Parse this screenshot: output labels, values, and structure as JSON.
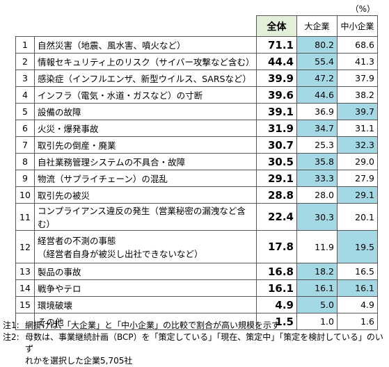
{
  "unit": "（%）",
  "table": {
    "header": [
      "全体",
      "大企業",
      "中小企業"
    ],
    "header_color": "#e2efd9",
    "shade_color": "#a3d8e4",
    "rows": [
      {
        "no": "1",
        "label": [
          "自然災害（地震、風水害、噴火など）"
        ],
        "values": [
          "71.1",
          "80.2",
          "68.6"
        ],
        "shaded": [
          1
        ]
      },
      {
        "no": "2",
        "label": [
          "情報セキュリティ上のリスク（サイバー攻撃など含む）"
        ],
        "values": [
          "44.4",
          "55.4",
          "41.3"
        ],
        "shaded": [
          1
        ]
      },
      {
        "no": "3",
        "label": [
          "感染症（インフルエンザ、新型ウイルス、SARSなど）"
        ],
        "values": [
          "39.9",
          "47.2",
          "37.9"
        ],
        "shaded": [
          1
        ]
      },
      {
        "no": "4",
        "label": [
          "インフラ（電気・水道・ガスなど）の寸断"
        ],
        "values": [
          "39.6",
          "44.6",
          "38.2"
        ],
        "shaded": [
          1
        ]
      },
      {
        "no": "5",
        "label": [
          "設備の故障"
        ],
        "values": [
          "39.1",
          "36.9",
          "39.7"
        ],
        "shaded": [
          2
        ]
      },
      {
        "no": "6",
        "label": [
          "火災・爆発事故"
        ],
        "values": [
          "31.9",
          "34.7",
          "31.1"
        ],
        "shaded": [
          1
        ]
      },
      {
        "no": "7",
        "label": [
          "取引先の倒産・廃業"
        ],
        "values": [
          "30.7",
          "25.3",
          "32.3"
        ],
        "shaded": [
          2
        ]
      },
      {
        "no": "8",
        "label": [
          "自社業務管理システムの不具合・故障"
        ],
        "values": [
          "30.5",
          "35.8",
          "29.0"
        ],
        "shaded": [
          1
        ]
      },
      {
        "no": "9",
        "label": [
          "物流（サプライチェーン）の混乱"
        ],
        "values": [
          "29.1",
          "33.3",
          "27.9"
        ],
        "shaded": [
          1
        ]
      },
      {
        "no": "10",
        "label": [
          "取引先の被災"
        ],
        "values": [
          "28.8",
          "28.0",
          "29.1"
        ],
        "shaded": [
          2
        ]
      },
      {
        "no": "11",
        "label": [
          "コンプライアンス違反の発生（営業秘密の漏洩など含む）"
        ],
        "values": [
          "22.4",
          "30.3",
          "20.1"
        ],
        "shaded": [
          1
        ]
      },
      {
        "no": "12",
        "label": [
          "経営者の不測の事態",
          "（経営者自身が被災し出社できないなど）"
        ],
        "values": [
          "17.8",
          "11.9",
          "19.5"
        ],
        "shaded": [
          2
        ]
      },
      {
        "no": "13",
        "label": [
          "製品の事故"
        ],
        "values": [
          "16.8",
          "18.2",
          "16.5"
        ],
        "shaded": [
          1
        ]
      },
      {
        "no": "14",
        "label": [
          "戦争やテロ"
        ],
        "values": [
          "16.1",
          "16.1",
          "16.1"
        ],
        "shaded": [
          1,
          2
        ]
      },
      {
        "no": "15",
        "label": [
          "環境破壊"
        ],
        "values": [
          "4.9",
          "5.0",
          "4.9"
        ],
        "shaded": [
          1
        ]
      },
      {
        "no": "",
        "label": [
          "その他"
        ],
        "values": [
          "1.5",
          "1.0",
          "1.6"
        ],
        "shaded": []
      }
    ]
  },
  "notes": [
    {
      "mark": "注1:",
      "lines": [
        "網掛けは、「大企業」と「中小企業」の比較で割合が高い規模を示す"
      ]
    },
    {
      "mark": "注2:",
      "lines": [
        "母数は、事業継続計画（BCP）を「策定している」「現在、策定中」「策定を検討している」のいず",
        "れかを選択した企業5,705社"
      ]
    }
  ]
}
